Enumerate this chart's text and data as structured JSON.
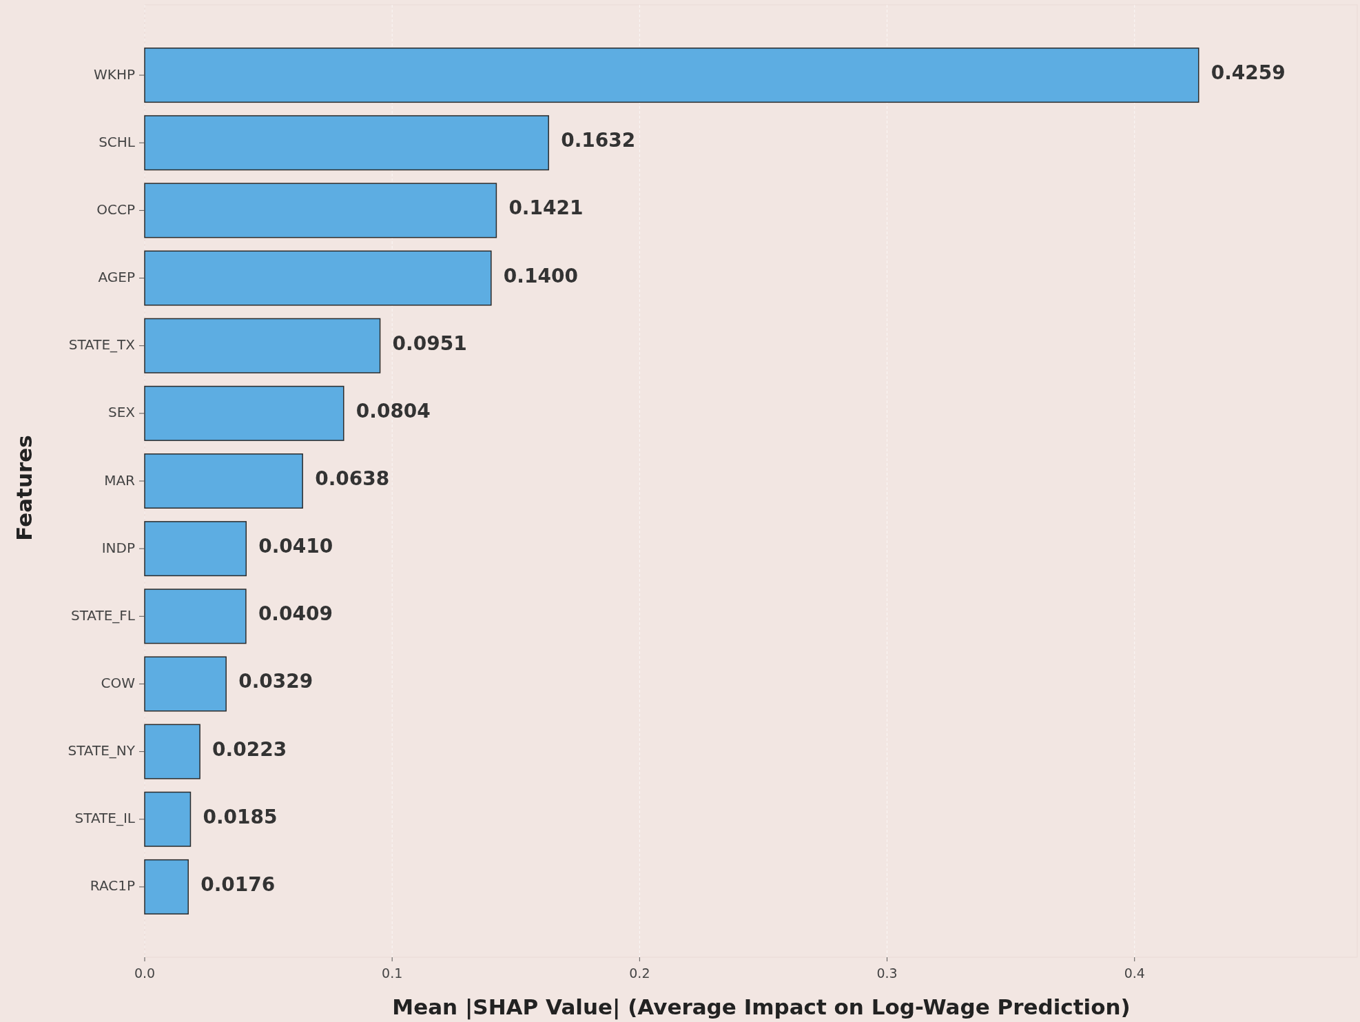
{
  "chart_data": {
    "type": "bar",
    "orientation": "horizontal",
    "xlabel": "Mean |SHAP Value| (Average Impact on Log-Wage Prediction)",
    "ylabel": "Features",
    "categories": [
      "WKHP",
      "SCHL",
      "OCCP",
      "AGEP",
      "STATE_TX",
      "SEX",
      "MAR",
      "INDP",
      "STATE_FL",
      "COW",
      "STATE_NY",
      "STATE_IL",
      "RAC1P"
    ],
    "values": [
      0.4259,
      0.1632,
      0.1421,
      0.14,
      0.0951,
      0.0804,
      0.0638,
      0.041,
      0.0409,
      0.0329,
      0.0223,
      0.0185,
      0.0176
    ],
    "value_labels": [
      "0.4259",
      "0.1632",
      "0.1421",
      "0.1400",
      "0.0951",
      "0.0804",
      "0.0638",
      "0.0410",
      "0.0409",
      "0.0329",
      "0.0223",
      "0.0185",
      "0.0176"
    ],
    "color": "#5dade2",
    "xlim": [
      0,
      0.49
    ],
    "xticks": [
      {
        "value": 0,
        "label": "0.0"
      },
      0.1,
      0.2,
      0.3,
      0.4
    ],
    "grid": "x"
  }
}
